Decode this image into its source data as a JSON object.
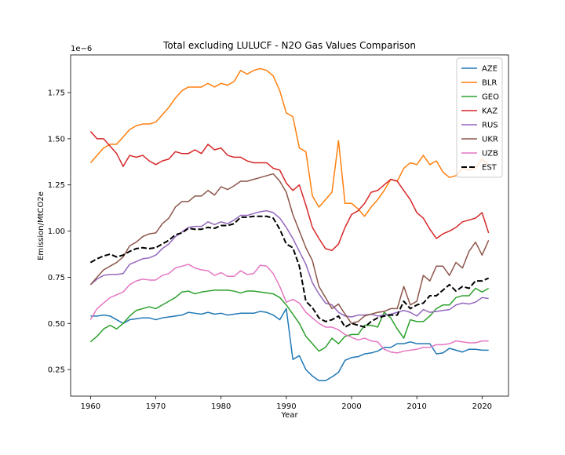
{
  "chart_data": {
    "type": "line",
    "title": "Total excluding LULUCF - N2O Gas Values Comparison",
    "x_label": "Year",
    "y_label": "Emission/MtCO2e",
    "y_offset_label": "1e−6",
    "x": [
      1960,
      1961,
      1962,
      1963,
      1964,
      1965,
      1966,
      1967,
      1968,
      1969,
      1970,
      1971,
      1972,
      1973,
      1974,
      1975,
      1976,
      1977,
      1978,
      1979,
      1980,
      1981,
      1982,
      1983,
      1984,
      1985,
      1986,
      1987,
      1988,
      1989,
      1990,
      1991,
      1992,
      1993,
      1994,
      1995,
      1996,
      1997,
      1998,
      1999,
      2000,
      2001,
      2002,
      2003,
      2004,
      2005,
      2006,
      2007,
      2008,
      2009,
      2010,
      2011,
      2012,
      2013,
      2014,
      2015,
      2016,
      2017,
      2018,
      2019,
      2020,
      2021
    ],
    "xlim": [
      1956.95,
      2024.05
    ],
    "xticks": [
      1960,
      1970,
      1980,
      1990,
      2000,
      2010,
      2020
    ],
    "ylim": [
      0.106,
      1.954
    ],
    "yticks": [
      {
        "value": 0.25,
        "label": "0.25"
      },
      {
        "value": 0.5,
        "label": "0.50"
      },
      {
        "value": 0.75,
        "label": "0.75"
      },
      {
        "value": 1.0,
        "label": "1.00"
      },
      {
        "value": 1.25,
        "label": "1.25"
      },
      {
        "value": 1.5,
        "label": "1.50"
      },
      {
        "value": 1.75,
        "label": "1.75"
      }
    ],
    "grid": false,
    "legend": "upper right",
    "series": [
      {
        "name": "AZE",
        "color": "#1f77b4",
        "linestyle": "solid",
        "values": [
          0.54,
          0.54,
          0.545,
          0.54,
          0.52,
          0.5,
          0.52,
          0.525,
          0.53,
          0.53,
          0.52,
          0.53,
          0.535,
          0.54,
          0.545,
          0.56,
          0.555,
          0.55,
          0.56,
          0.55,
          0.555,
          0.545,
          0.55,
          0.555,
          0.555,
          0.555,
          0.565,
          0.56,
          0.545,
          0.52,
          0.58,
          0.305,
          0.325,
          0.25,
          0.215,
          0.19,
          0.19,
          0.21,
          0.235,
          0.3,
          0.315,
          0.32,
          0.335,
          0.34,
          0.35,
          0.37,
          0.37,
          0.39,
          0.39,
          0.4,
          0.39,
          0.39,
          0.39,
          0.335,
          0.34,
          0.365,
          0.355,
          0.345,
          0.36,
          0.36,
          0.355,
          0.355
        ]
      },
      {
        "name": "BLR",
        "color": "#ff7f0e",
        "linestyle": "solid",
        "values": [
          1.37,
          1.41,
          1.45,
          1.47,
          1.47,
          1.51,
          1.55,
          1.57,
          1.58,
          1.58,
          1.59,
          1.63,
          1.67,
          1.72,
          1.76,
          1.78,
          1.78,
          1.78,
          1.8,
          1.78,
          1.8,
          1.79,
          1.81,
          1.87,
          1.85,
          1.87,
          1.88,
          1.87,
          1.84,
          1.76,
          1.64,
          1.62,
          1.45,
          1.43,
          1.19,
          1.13,
          1.17,
          1.21,
          1.49,
          1.15,
          1.15,
          1.12,
          1.08,
          1.13,
          1.17,
          1.22,
          1.28,
          1.27,
          1.34,
          1.37,
          1.36,
          1.41,
          1.36,
          1.38,
          1.32,
          1.29,
          1.3,
          1.34,
          1.33,
          1.34,
          1.39,
          1.36
        ]
      },
      {
        "name": "GEO",
        "color": "#2ca02c",
        "linestyle": "solid",
        "values": [
          0.4,
          0.43,
          0.47,
          0.49,
          0.47,
          0.5,
          0.54,
          0.57,
          0.58,
          0.59,
          0.58,
          0.6,
          0.62,
          0.64,
          0.67,
          0.675,
          0.66,
          0.67,
          0.675,
          0.68,
          0.68,
          0.68,
          0.675,
          0.665,
          0.675,
          0.675,
          0.67,
          0.665,
          0.66,
          0.64,
          0.6,
          0.55,
          0.5,
          0.43,
          0.39,
          0.35,
          0.37,
          0.42,
          0.39,
          0.43,
          0.44,
          0.44,
          0.49,
          0.49,
          0.48,
          0.56,
          0.53,
          0.47,
          0.42,
          0.52,
          0.51,
          0.51,
          0.54,
          0.58,
          0.6,
          0.6,
          0.64,
          0.65,
          0.65,
          0.69,
          0.67,
          0.69
        ]
      },
      {
        "name": "KAZ",
        "color": "#d62728",
        "linestyle": "solid",
        "values": [
          1.54,
          1.5,
          1.5,
          1.46,
          1.42,
          1.35,
          1.41,
          1.4,
          1.41,
          1.38,
          1.36,
          1.38,
          1.39,
          1.43,
          1.42,
          1.42,
          1.44,
          1.42,
          1.47,
          1.44,
          1.45,
          1.41,
          1.4,
          1.4,
          1.38,
          1.37,
          1.37,
          1.37,
          1.34,
          1.33,
          1.26,
          1.22,
          1.25,
          1.14,
          1.02,
          0.96,
          0.905,
          0.895,
          0.93,
          1.02,
          1.09,
          1.11,
          1.15,
          1.21,
          1.22,
          1.25,
          1.28,
          1.27,
          1.22,
          1.17,
          1.1,
          1.07,
          1.01,
          0.96,
          0.985,
          1.0,
          1.02,
          1.05,
          1.06,
          1.07,
          1.1,
          0.99
        ]
      },
      {
        "name": "RUS",
        "color": "#9467bd",
        "linestyle": "solid",
        "values": [
          0.71,
          0.74,
          0.76,
          0.765,
          0.765,
          0.77,
          0.82,
          0.835,
          0.85,
          0.855,
          0.87,
          0.905,
          0.93,
          0.97,
          0.995,
          1.02,
          1.025,
          1.025,
          1.05,
          1.035,
          1.05,
          1.04,
          1.06,
          1.085,
          1.085,
          1.095,
          1.105,
          1.11,
          1.1,
          1.07,
          1.02,
          0.96,
          0.89,
          0.82,
          0.72,
          0.66,
          0.61,
          0.6,
          0.56,
          0.54,
          0.535,
          0.545,
          0.545,
          0.55,
          0.54,
          0.545,
          0.55,
          0.56,
          0.57,
          0.56,
          0.54,
          0.575,
          0.56,
          0.565,
          0.57,
          0.575,
          0.6,
          0.61,
          0.605,
          0.615,
          0.64,
          0.635
        ]
      },
      {
        "name": "UKR",
        "color": "#8c564b",
        "linestyle": "solid",
        "values": [
          0.71,
          0.75,
          0.79,
          0.81,
          0.83,
          0.86,
          0.92,
          0.94,
          0.97,
          0.985,
          0.99,
          1.04,
          1.07,
          1.13,
          1.16,
          1.16,
          1.19,
          1.19,
          1.22,
          1.195,
          1.24,
          1.225,
          1.245,
          1.27,
          1.27,
          1.28,
          1.29,
          1.3,
          1.31,
          1.27,
          1.21,
          1.09,
          1.0,
          0.91,
          0.84,
          0.7,
          0.64,
          0.58,
          0.605,
          0.55,
          0.5,
          0.51,
          0.54,
          0.55,
          0.56,
          0.565,
          0.58,
          0.58,
          0.7,
          0.6,
          0.62,
          0.76,
          0.73,
          0.81,
          0.81,
          0.76,
          0.83,
          0.8,
          0.89,
          0.94,
          0.87,
          0.95
        ]
      },
      {
        "name": "UZB",
        "color": "#e377c2",
        "linestyle": "solid",
        "values": [
          0.52,
          0.58,
          0.61,
          0.64,
          0.655,
          0.67,
          0.71,
          0.73,
          0.74,
          0.735,
          0.735,
          0.76,
          0.77,
          0.8,
          0.81,
          0.82,
          0.8,
          0.79,
          0.785,
          0.76,
          0.775,
          0.755,
          0.755,
          0.785,
          0.765,
          0.77,
          0.815,
          0.81,
          0.77,
          0.7,
          0.615,
          0.63,
          0.61,
          0.56,
          0.53,
          0.5,
          0.48,
          0.48,
          0.465,
          0.44,
          0.425,
          0.41,
          0.42,
          0.405,
          0.4,
          0.36,
          0.345,
          0.34,
          0.35,
          0.355,
          0.36,
          0.37,
          0.37,
          0.385,
          0.385,
          0.39,
          0.405,
          0.4,
          0.395,
          0.395,
          0.405,
          0.405
        ]
      },
      {
        "name": "EST",
        "color": "#000000",
        "linestyle": "dashed",
        "values": [
          0.83,
          0.85,
          0.865,
          0.875,
          0.86,
          0.87,
          0.89,
          0.905,
          0.91,
          0.905,
          0.91,
          0.93,
          0.95,
          0.98,
          0.99,
          1.015,
          1.01,
          1.01,
          1.02,
          1.015,
          1.03,
          1.03,
          1.04,
          1.075,
          1.075,
          1.08,
          1.08,
          1.08,
          1.07,
          1.01,
          0.93,
          0.91,
          0.81,
          0.62,
          0.585,
          0.53,
          0.51,
          0.52,
          0.54,
          0.48,
          0.5,
          0.49,
          0.48,
          0.51,
          0.53,
          0.54,
          0.545,
          0.545,
          0.62,
          0.58,
          0.6,
          0.61,
          0.65,
          0.65,
          0.68,
          0.71,
          0.675,
          0.7,
          0.69,
          0.73,
          0.73,
          0.745
        ]
      }
    ]
  }
}
